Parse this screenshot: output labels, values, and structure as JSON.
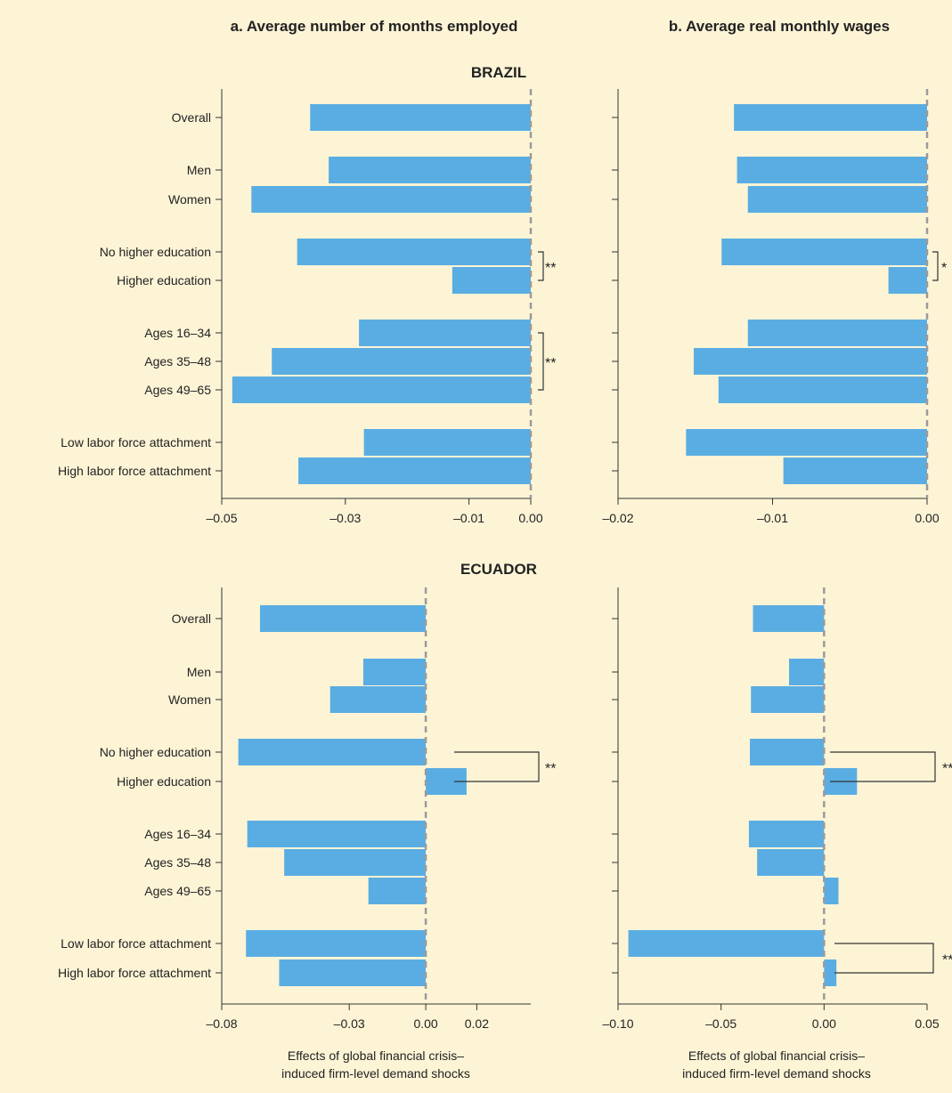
{
  "headings": {
    "col_a": "a. Average number of months employed",
    "col_b": "b. Average real monthly wages",
    "brazil": "BRAZIL",
    "ecuador": "ECUADOR"
  },
  "colors": {
    "bar": "#5aade2",
    "background": "#fdf4d6",
    "zero_line": "#9a9a9a"
  },
  "x_caption": {
    "line1": "Effects of global financial crisis–",
    "line2": "induced firm-level demand shocks"
  },
  "chart_data": [
    {
      "type": "bar",
      "orientation": "horizontal",
      "country": "BRAZIL",
      "title": "a. Average number of months employed",
      "categories": [
        "Overall",
        "Men",
        "Women",
        "No higher education",
        "Higher education",
        "Ages 16–34",
        "Ages 35–48",
        "Ages 49–65",
        "Low labor force attachment",
        "High labor force attachment"
      ],
      "values": [
        -0.0357,
        -0.0327,
        -0.0452,
        -0.0378,
        -0.0127,
        -0.0278,
        -0.0419,
        -0.0483,
        -0.027,
        -0.0376
      ],
      "xlim": [
        -0.05,
        0.0
      ],
      "xticks": [
        -0.05,
        -0.03,
        -0.01,
        0.0
      ],
      "xtick_labels": [
        "–0.05",
        "–0.03",
        "–0.01",
        "0.00"
      ],
      "significance": [
        {
          "rows": [
            3,
            4
          ],
          "label": "**"
        },
        {
          "rows": [
            5,
            7
          ],
          "label": "**"
        }
      ]
    },
    {
      "type": "bar",
      "orientation": "horizontal",
      "country": "BRAZIL",
      "title": "b. Average real monthly wages",
      "categories": [
        "Overall",
        "Men",
        "Women",
        "No higher education",
        "Higher education",
        "Ages 16–34",
        "Ages 35–48",
        "Ages 49–65",
        "Low labor force attachment",
        "High labor force attachment"
      ],
      "values": [
        -0.0125,
        -0.0123,
        -0.0116,
        -0.0133,
        -0.0025,
        -0.0116,
        -0.0151,
        -0.0135,
        -0.0156,
        -0.0093
      ],
      "xlim": [
        -0.02,
        0.0
      ],
      "xticks": [
        -0.02,
        -0.01,
        0.0
      ],
      "xtick_labels": [
        "–0.02",
        "–0.01",
        "0.00"
      ],
      "significance": [
        {
          "rows": [
            3,
            4
          ],
          "label": "*"
        }
      ]
    },
    {
      "type": "bar",
      "orientation": "horizontal",
      "country": "ECUADOR",
      "title": "a. Average number of months employed",
      "categories": [
        "Overall",
        "Men",
        "Women",
        "No higher education",
        "Higher education",
        "Ages 16–34",
        "Ages 35–48",
        "Ages 49–65",
        "Low labor force attachment",
        "High labor force attachment"
      ],
      "values": [
        -0.065,
        -0.0245,
        -0.0375,
        -0.0735,
        0.016,
        -0.07,
        -0.0555,
        -0.0225,
        -0.0705,
        -0.0575
      ],
      "xlim": [
        -0.08,
        0.03
      ],
      "xticks": [
        -0.08,
        -0.03,
        0.0,
        0.02
      ],
      "xtick_labels": [
        "–0.08",
        "–0.03",
        "0.00",
        "0.02"
      ],
      "significance": [
        {
          "rows": [
            3,
            4
          ],
          "label": "**"
        }
      ]
    },
    {
      "type": "bar",
      "orientation": "horizontal",
      "country": "ECUADOR",
      "title": "b. Average real monthly wages",
      "categories": [
        "Overall",
        "Men",
        "Women",
        "No higher education",
        "Higher education",
        "Ages 16–34",
        "Ages 35–48",
        "Ages 49–65",
        "Low labor force attachment",
        "High labor force attachment"
      ],
      "values": [
        -0.0345,
        -0.017,
        -0.0355,
        -0.036,
        0.016,
        -0.0365,
        -0.0325,
        0.007,
        -0.095,
        0.006
      ],
      "xlim": [
        -0.1,
        0.05
      ],
      "xticks": [
        -0.1,
        -0.05,
        0.0,
        0.05
      ],
      "xtick_labels": [
        "–0.10",
        "–0.05",
        "0.00",
        "0.05"
      ],
      "significance": [
        {
          "rows": [
            3,
            4
          ],
          "label": "**"
        },
        {
          "rows": [
            8,
            9
          ],
          "label": "**"
        }
      ]
    }
  ]
}
